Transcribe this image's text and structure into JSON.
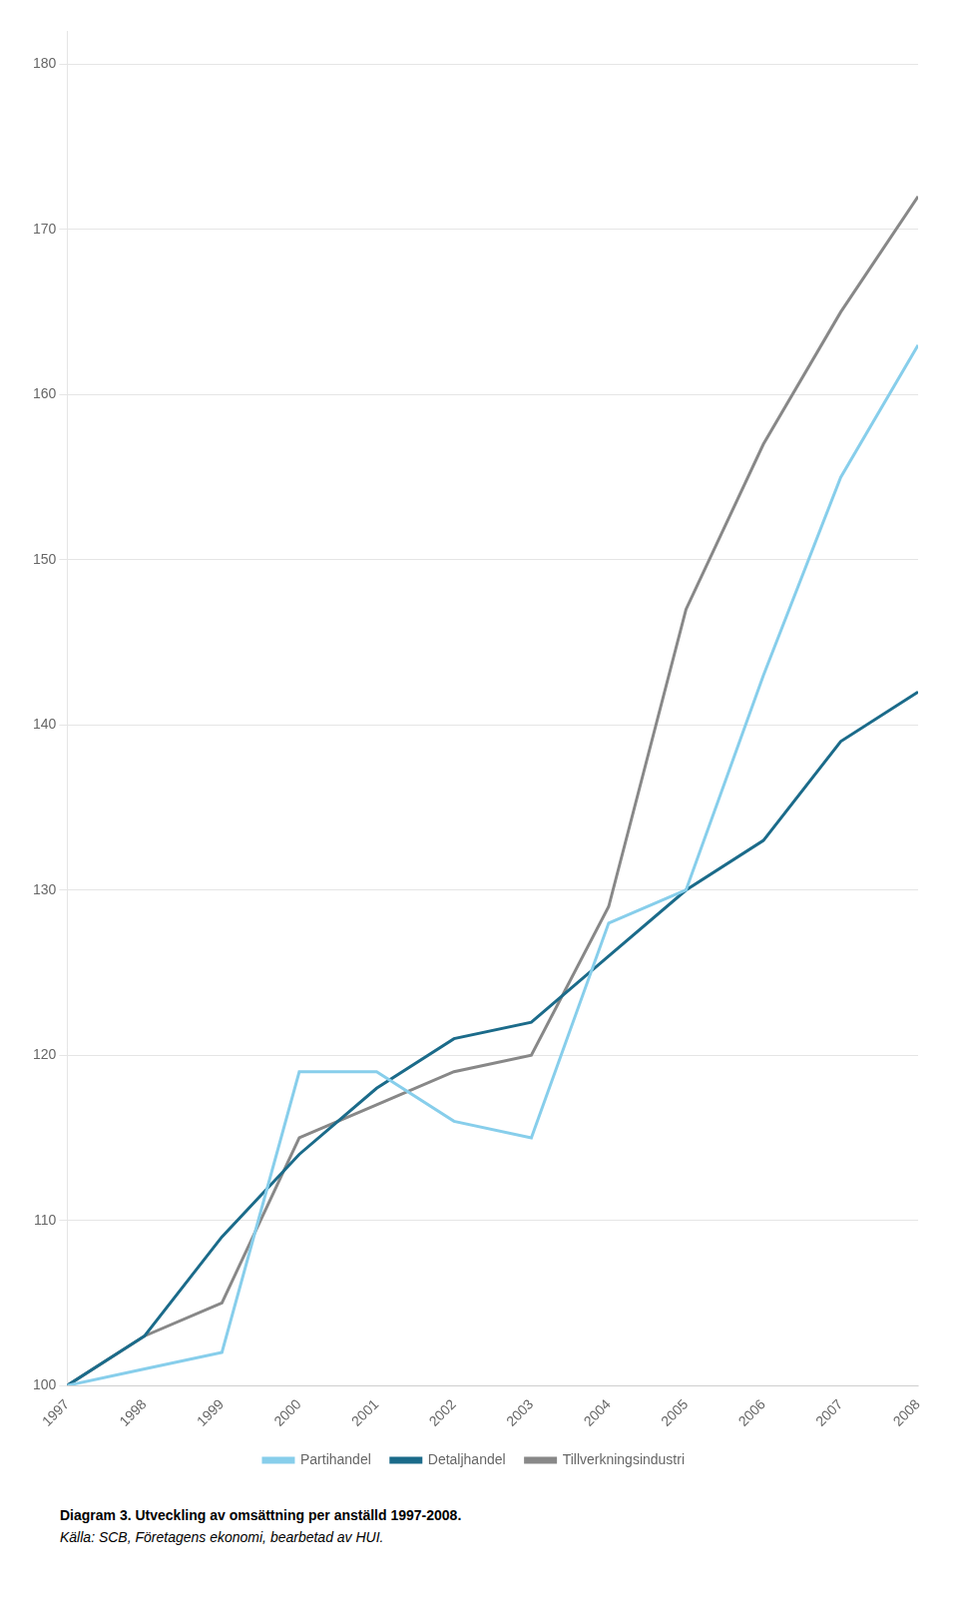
{
  "chart_data": {
    "type": "line",
    "x": [
      1997,
      1998,
      1999,
      2000,
      2001,
      2002,
      2003,
      2004,
      2005,
      2006,
      2007,
      2008
    ],
    "series": [
      {
        "name": "Partihandel",
        "color": "#87CEEB",
        "values": [
          100,
          101,
          102,
          119,
          119,
          116,
          115,
          128,
          130,
          143,
          155,
          163
        ]
      },
      {
        "name": "Detaljhandel",
        "color": "#1B6B8A",
        "values": [
          100,
          103,
          109,
          114,
          118,
          121,
          122,
          126,
          130,
          133,
          139,
          142
        ]
      },
      {
        "name": "Tillverkningsindustri",
        "color": "#888888",
        "values": [
          100,
          103,
          105,
          115,
          117,
          119,
          120,
          129,
          147,
          157,
          165,
          172
        ]
      }
    ],
    "xlim": [
      1997,
      2008
    ],
    "xticks": [
      1997,
      1998,
      1999,
      2000,
      2001,
      2002,
      2003,
      2004,
      2005,
      2006,
      2007,
      2008
    ],
    "ylim": [
      100,
      182
    ],
    "yticks": [
      100,
      110,
      120,
      130,
      140,
      150,
      160,
      170,
      180
    ],
    "grid": "y",
    "legend": "bottom",
    "annotations": [
      "Diagram 3. Utveckling av omsättning per anställd 1997-2008.",
      "Källa: SCB, Företagens ekonomi, bearbetad av HUI."
    ]
  }
}
